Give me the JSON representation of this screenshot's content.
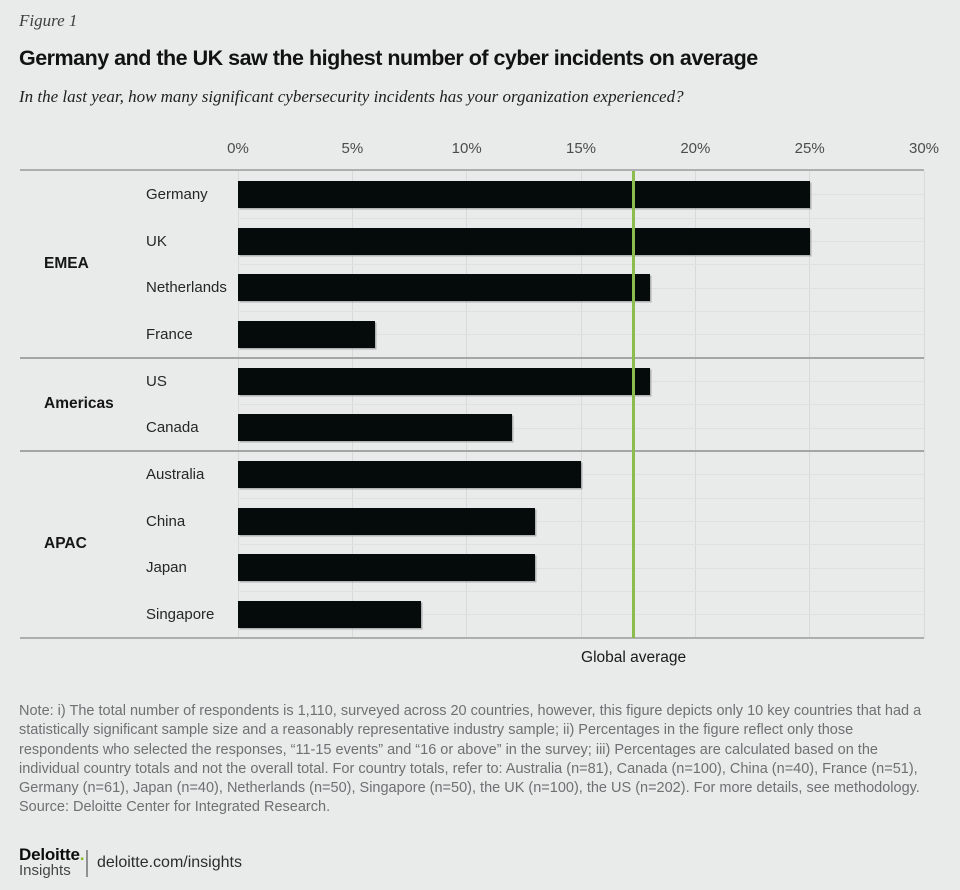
{
  "header": {
    "figure_label": "Figure 1",
    "title": "Germany and the UK saw the highest number of cyber incidents on average",
    "subtitle": "In the last year, how many significant cybersecurity incidents has your organization experienced?"
  },
  "chart_data": {
    "type": "bar",
    "orientation": "horizontal",
    "title": "Germany and the UK saw the highest number of cyber incidents on average",
    "xlabel": "",
    "ylabel": "",
    "x_range": [
      0,
      30
    ],
    "x_ticks": [
      "0%",
      "5%",
      "10%",
      "15%",
      "20%",
      "25%",
      "30%"
    ],
    "grid": true,
    "bar_color": "#050a0b",
    "reference_line": {
      "label": "Global average",
      "value": 17.3,
      "color": "#8abd4e"
    },
    "groups": [
      {
        "name": "EMEA",
        "countries": [
          {
            "label": "Germany",
            "value": 25
          },
          {
            "label": "UK",
            "value": 25
          },
          {
            "label": "Netherlands",
            "value": 18
          },
          {
            "label": "France",
            "value": 6
          }
        ]
      },
      {
        "name": "Americas",
        "countries": [
          {
            "label": "US",
            "value": 18
          },
          {
            "label": "Canada",
            "value": 12
          }
        ]
      },
      {
        "name": "APAC",
        "countries": [
          {
            "label": "Australia",
            "value": 15
          },
          {
            "label": "China",
            "value": 13
          },
          {
            "label": "Japan",
            "value": 13
          },
          {
            "label": "Singapore",
            "value": 8
          }
        ]
      }
    ]
  },
  "notes": {
    "note": "Note: i) The total number of respondents is 1,110, surveyed across 20 countries, however, this figure depicts only 10 key countries that had a statistically significant sample size and a reasonably representative industry sample; ii) Percentages in the figure reflect only those respondents who selected the responses, “11-15 events” and “16 or above” in the survey; iii) Percentages are calculated based on the individual country totals and not the overall total. For country totals, refer to: Australia (n=81), Canada (n=100), China (n=40), France (n=51), Germany (n=61), Japan (n=40), Netherlands (n=50), Singapore (n=50), the UK (n=100), the US (n=202). For more details, see methodology.",
    "source": "Source: Deloitte Center for Integrated Research."
  },
  "footer": {
    "brand": "Deloitte",
    "brand_dot": ".",
    "insights": "Insights",
    "url": "deloitte.com/insights"
  },
  "colors": {
    "background": "#e9eaea",
    "bar": "#050a0b",
    "accent_green": "#86bc25",
    "reference_green": "#8abd4e",
    "gridline": "#d8d9da"
  }
}
